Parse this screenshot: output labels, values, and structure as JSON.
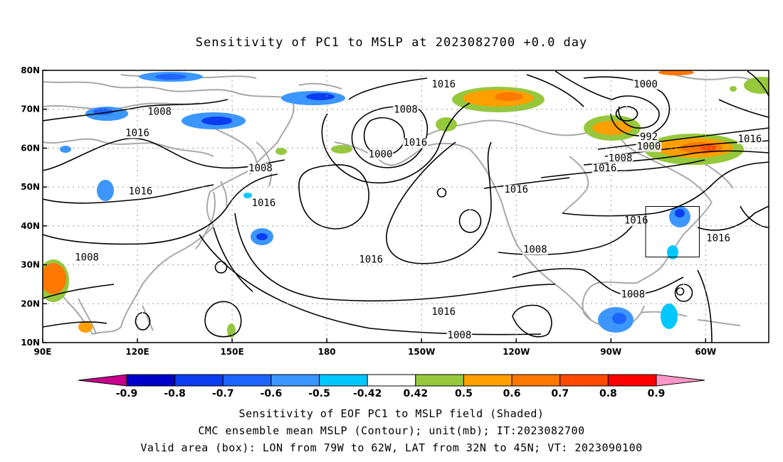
{
  "title": "Sensitivity of PC1 to MSLP at 2023082700 +0.0 day",
  "map": {
    "lat_labels": [
      "80N",
      "70N",
      "60N",
      "50N",
      "40N",
      "30N",
      "20N",
      "10N"
    ],
    "lat_values": [
      80,
      70,
      60,
      50,
      40,
      30,
      20,
      10
    ],
    "lon_labels": [
      "90E",
      "120E",
      "150E",
      "180",
      "150W",
      "120W",
      "90W",
      "60W"
    ],
    "lon_values": [
      90,
      120,
      150,
      180,
      210,
      240,
      270,
      300
    ],
    "extent": {
      "lon_min": 90,
      "lon_max": 320,
      "lat_min": 10,
      "lat_max": 80
    },
    "grid": "dotted",
    "contour_labels": [
      {
        "text": "1016",
        "lon": 217,
        "lat": 76.5
      },
      {
        "text": "1000",
        "lon": 281,
        "lat": 76.5
      },
      {
        "text": "1008",
        "lon": 127,
        "lat": 69.5
      },
      {
        "text": "1008",
        "lon": 205,
        "lat": 70
      },
      {
        "text": "1016",
        "lon": 120,
        "lat": 64
      },
      {
        "text": "992",
        "lon": 282,
        "lat": 63
      },
      {
        "text": "1000",
        "lon": 282,
        "lat": 60.5
      },
      {
        "text": "1016",
        "lon": 314,
        "lat": 62.5
      },
      {
        "text": "1016",
        "lon": 208,
        "lat": 61.5
      },
      {
        "text": "1000",
        "lon": 197,
        "lat": 58.5
      },
      {
        "text": "1008",
        "lon": 273,
        "lat": 57.5
      },
      {
        "text": "1016",
        "lon": 268,
        "lat": 55
      },
      {
        "text": "1008",
        "lon": 159,
        "lat": 55
      },
      {
        "text": "1016",
        "lon": 121,
        "lat": 49
      },
      {
        "text": "1016",
        "lon": 240,
        "lat": 49.5
      },
      {
        "text": "1016",
        "lon": 160,
        "lat": 46
      },
      {
        "text": "1016",
        "lon": 278,
        "lat": 41.5
      },
      {
        "text": "1016",
        "lon": 304,
        "lat": 37
      },
      {
        "text": "1008",
        "lon": 104,
        "lat": 32
      },
      {
        "text": "1008",
        "lon": 246,
        "lat": 34
      },
      {
        "text": "1016",
        "lon": 194,
        "lat": 31.5
      },
      {
        "text": "1008",
        "lon": 277,
        "lat": 22.5
      },
      {
        "text": "1016",
        "lon": 217,
        "lat": 18
      },
      {
        "text": "1008",
        "lon": 222,
        "lat": 12
      }
    ],
    "valid_box": {
      "lon_min": 281,
      "lon_max": 298,
      "lat_min": 32,
      "lat_max": 45
    }
  },
  "colorbar": {
    "labels": [
      "-0.9",
      "-0.8",
      "-0.7",
      "-0.6",
      "-0.5",
      "-0.42",
      "0.42",
      "0.5",
      "0.6",
      "0.7",
      "0.8",
      "0.9"
    ],
    "colors": [
      "#0000c8",
      "#0a3cf0",
      "#1e64ff",
      "#3c96ff",
      "#00c8ff",
      "#ffffff",
      "#96c83c",
      "#ffa000",
      "#ff7800",
      "#ff4b00",
      "#ff0000"
    ],
    "low_extend_color": "#c8008c",
    "high_extend_color": "#ff96c8"
  },
  "caption": {
    "line1": "Sensitivity of EOF PC1 to MSLP field (Shaded)",
    "line2": "CMC ensemble mean MSLP (Contour); unit(mb); IT:2023082700",
    "line3": "Valid area (box): LON from 79W to 62W, LAT from 32N to 45N; VT: 2023090100"
  }
}
